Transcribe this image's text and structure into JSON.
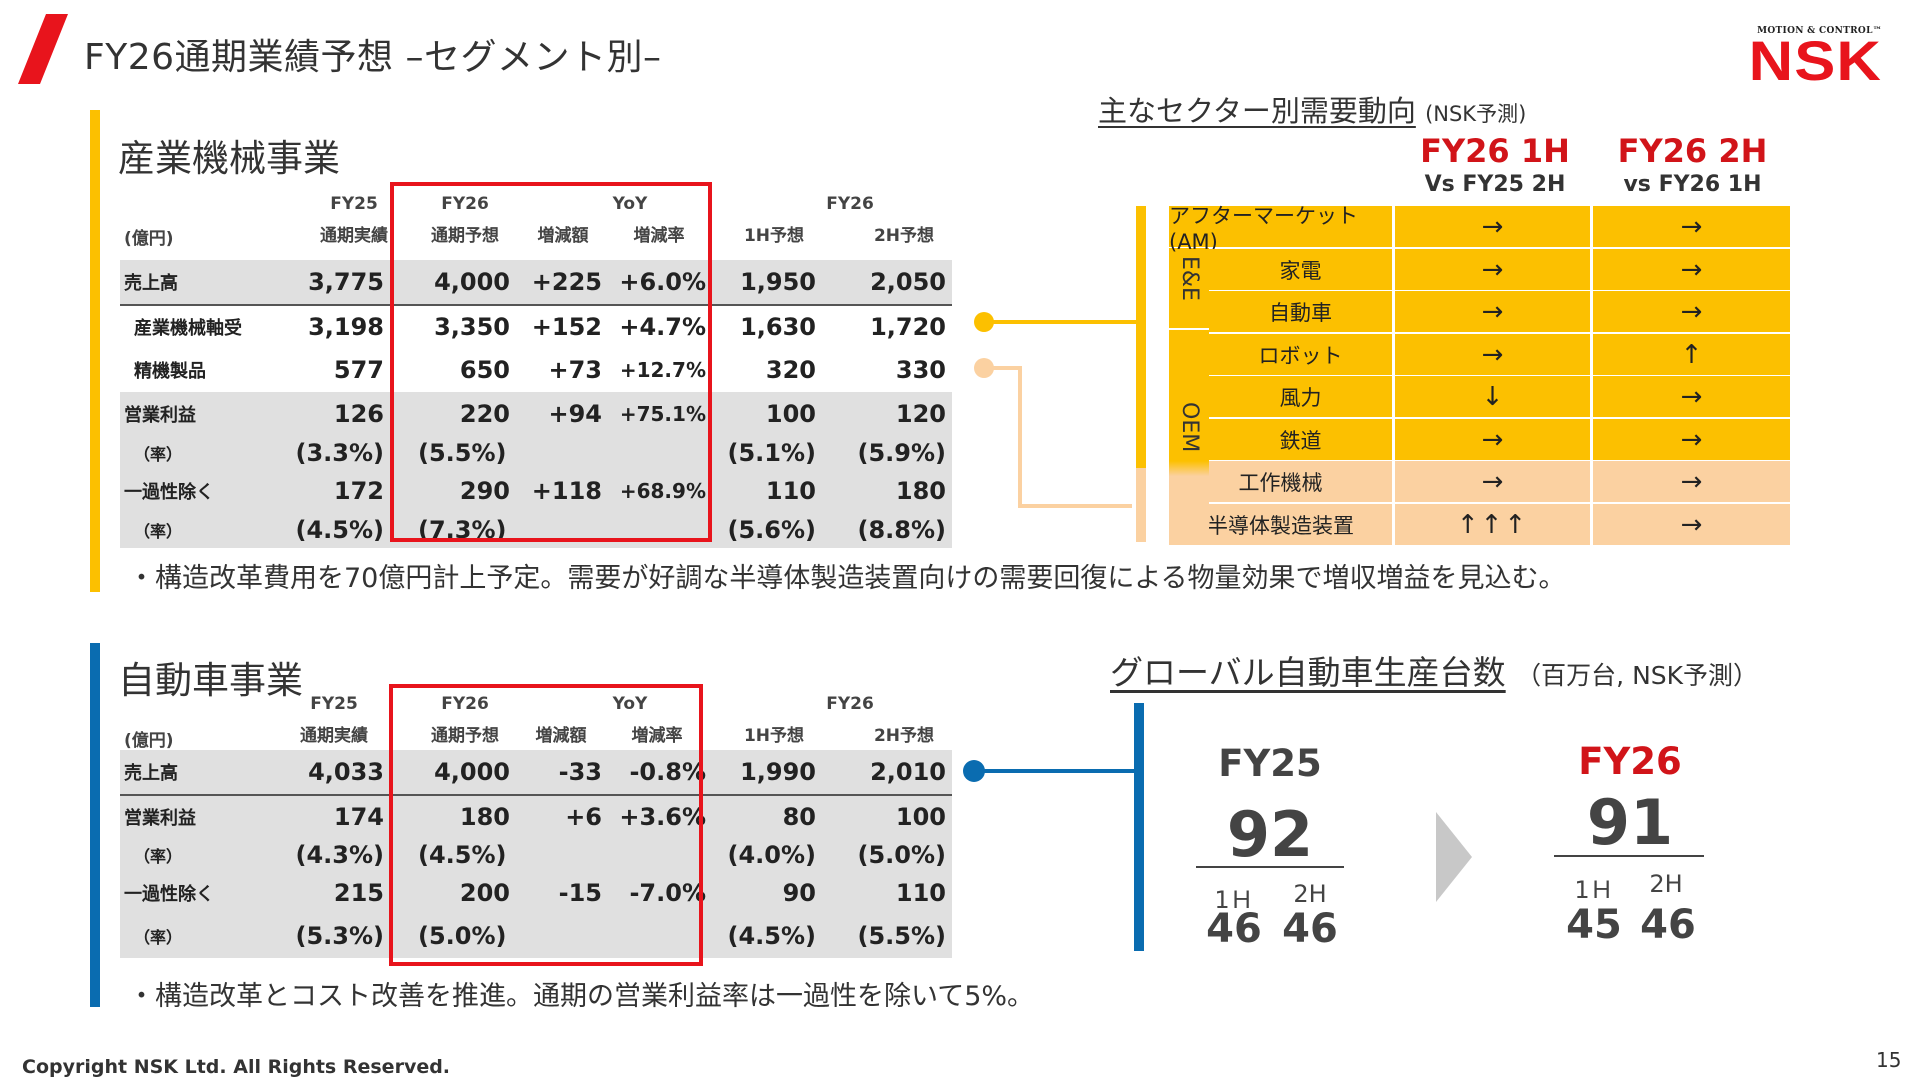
{
  "header": {
    "title": "FY26通期業績予想 –セグメント別–",
    "logo_sub": "MOTION & CONTROL™",
    "logo_main": "NSK"
  },
  "industrial": {
    "title": "産業機械事業",
    "headers": {
      "unit": "(億円)",
      "fy25": "FY25",
      "fy25_sub": "通期実績",
      "fy26": "FY26",
      "fy26_sub": "通期予想",
      "yoy": "YoY",
      "yoy_amt": "増減額",
      "yoy_rate": "増減率",
      "fy26_half": "FY26",
      "h1": "1H予想",
      "h2": "2H予想"
    },
    "rows": [
      {
        "label": "売上高",
        "fy25": "3,775",
        "fy26": "4,000",
        "amt": "+225",
        "rate": "+6.0%",
        "h1": "1,950",
        "h2": "2,050"
      },
      {
        "label": "産業機械軸受",
        "fy25": "3,198",
        "fy26": "3,350",
        "amt": "+152",
        "rate": "+4.7%",
        "h1": "1,630",
        "h2": "1,720"
      },
      {
        "label": "精機製品",
        "fy25": "577",
        "fy26": "650",
        "amt": "+73",
        "rate": "+12.7%",
        "h1": "320",
        "h2": "330"
      },
      {
        "label": "営業利益",
        "fy25": "126",
        "fy26": "220",
        "amt": "+94",
        "rate": "+75.1%",
        "h1": "100",
        "h2": "120"
      },
      {
        "label": "（率）",
        "fy25": "(3.3%)",
        "fy26": "(5.5%)",
        "amt": "",
        "rate": "",
        "h1": "(5.1%)",
        "h2": "(5.9%)"
      },
      {
        "label": "一過性除く",
        "fy25": "172",
        "fy26": "290",
        "amt": "+118",
        "rate": "+68.9%",
        "h1": "110",
        "h2": "180"
      },
      {
        "label": "（率）",
        "fy25": "(4.5%)",
        "fy26": "(7.3%)",
        "amt": "",
        "rate": "",
        "h1": "(5.6%)",
        "h2": "(8.8%)"
      }
    ],
    "note": "・構造改革費用を70億円計上予定。需要が好調な半導体製造装置向けの需要回復による物量効果で増収増益を見込む。"
  },
  "sector": {
    "title": "主なセクター別需要動向",
    "title_note": "(NSK予測)",
    "col1_title": "FY26 1H",
    "col1_sub": "Vs  FY25 2H",
    "col2_title": "FY26 2H",
    "col2_sub": "vs  FY26 1H",
    "group_ee": "E&E",
    "group_oem": "OEM",
    "rows": [
      {
        "name": "アフターマーケット(AM)",
        "a": "→",
        "b": "→"
      },
      {
        "name": "家電",
        "a": "→",
        "b": "→"
      },
      {
        "name": "自動車",
        "a": "→",
        "b": "→"
      },
      {
        "name": "ロボット",
        "a": "→",
        "b": "↑"
      },
      {
        "name": "風力",
        "a": "↓",
        "b": "→"
      },
      {
        "name": "鉄道",
        "a": "→",
        "b": "→"
      },
      {
        "name": "工作機械",
        "a": "→",
        "b": "→"
      },
      {
        "name": "半導体製造装置",
        "a": "↑↑↑",
        "b": "→"
      }
    ],
    "colors": {
      "yellow": "#fcc000",
      "peach": "#fbd1a1"
    }
  },
  "automotive": {
    "title": "自動車事業",
    "headers": {
      "unit": "(億円)",
      "fy25": "FY25",
      "fy25_sub": "通期実績",
      "fy26": "FY26",
      "fy26_sub": "通期予想",
      "yoy": "YoY",
      "yoy_amt": "増減額",
      "yoy_rate": "増減率",
      "fy26_half": "FY26",
      "h1": "1H予想",
      "h2": "2H予想"
    },
    "rows": [
      {
        "label": "売上高",
        "fy25": "4,033",
        "fy26": "4,000",
        "amt": "-33",
        "rate": "-0.8%",
        "h1": "1,990",
        "h2": "2,010"
      },
      {
        "label": "営業利益",
        "fy25": "174",
        "fy26": "180",
        "amt": "+6",
        "rate": "+3.6%",
        "h1": "80",
        "h2": "100"
      },
      {
        "label": "（率）",
        "fy25": "(4.3%)",
        "fy26": "(4.5%)",
        "amt": "",
        "rate": "",
        "h1": "(4.0%)",
        "h2": "(5.0%)"
      },
      {
        "label": "一過性除く",
        "fy25": "215",
        "fy26": "200",
        "amt": "-15",
        "rate": "-7.0%",
        "h1": "90",
        "h2": "110"
      },
      {
        "label": "（率）",
        "fy25": "(5.3%)",
        "fy26": "(5.0%)",
        "amt": "",
        "rate": "",
        "h1": "(4.5%)",
        "h2": "(5.5%)"
      }
    ],
    "note": "・構造改革とコスト改善を推進。通期の営業利益率は一過性を除いて5%。"
  },
  "global_production": {
    "title": "グローバル自動車生産台数",
    "title_note": "（百万台, NSK予測）",
    "fy25": {
      "label": "FY25",
      "total": "92",
      "h1_label": "1Ｈ",
      "h2_label": "2H",
      "h1": "46",
      "h2": "46"
    },
    "fy26": {
      "label": "FY26",
      "total": "91",
      "h1_label": "1Ｈ",
      "h2_label": "2H",
      "h1": "45",
      "h2": "46"
    }
  },
  "footer": {
    "copyright": "Copyright NSK Ltd. All Rights Reserved.",
    "page": "15"
  },
  "colors": {
    "accent_red": "#e8141c",
    "industrial_bar": "#fcc000",
    "automotive_bar": "#0a6cb0",
    "peach": "#fbd1a1"
  }
}
